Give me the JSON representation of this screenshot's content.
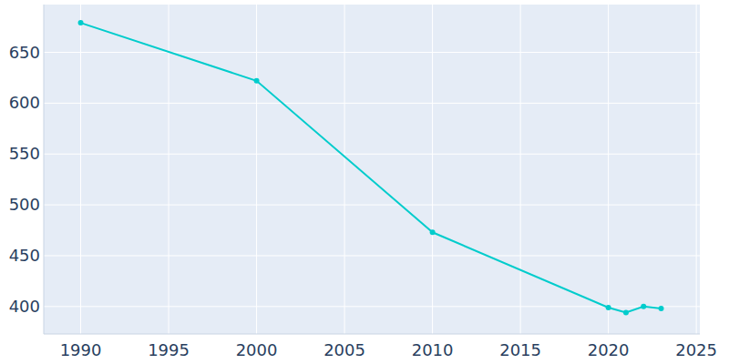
{
  "chart_data": {
    "type": "line",
    "x": [
      1990,
      2000,
      2010,
      2020,
      2021,
      2022,
      2023
    ],
    "values": [
      679,
      622,
      473,
      399,
      394,
      400,
      398
    ],
    "color": "#00cccc",
    "marker": "circle",
    "xlim": [
      1987.9,
      2025.2
    ],
    "xticks": [
      1990,
      1995,
      2000,
      2005,
      2010,
      2015,
      2020,
      2025
    ],
    "ylim": [
      373,
      697
    ],
    "yticks": [
      400,
      450,
      500,
      550,
      600,
      650
    ],
    "grid": true
  }
}
